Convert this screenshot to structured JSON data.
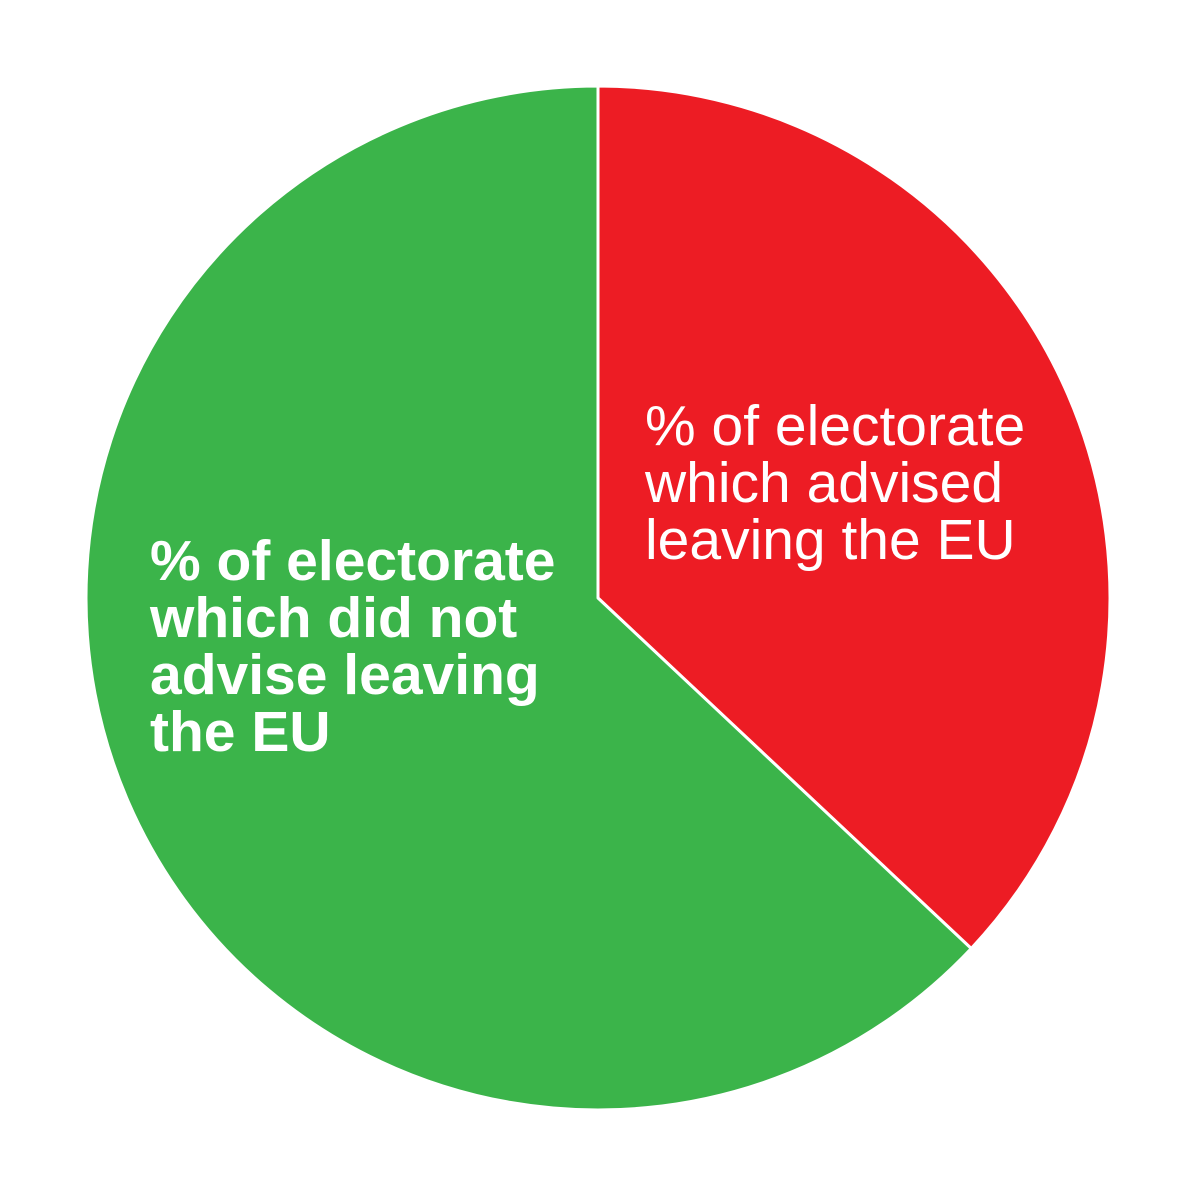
{
  "chart_data": {
    "type": "pie",
    "title": "",
    "start_angle_deg": 0,
    "direction": "clockwise",
    "slices": [
      {
        "label_lines": [
          "% of electorate",
          "which advised",
          "leaving the EU"
        ],
        "value": 37,
        "color": "#ed1c24",
        "label_weight": "normal"
      },
      {
        "label_lines": [
          "% of electorate",
          "which did not",
          "advise leaving",
          "the EU"
        ],
        "value": 63,
        "color": "#3bb44a",
        "label_weight": "bold"
      }
    ],
    "separator_color": "#ffffff"
  }
}
